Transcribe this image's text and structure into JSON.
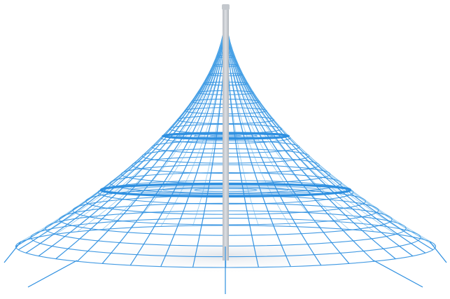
{
  "image": {
    "subject": "rope-net-pyramid-climber",
    "background_color": "#ffffff"
  },
  "colors": {
    "rope": "#2d8fe0",
    "rope_light": "#5aaeea",
    "mast": "#c9cdd2",
    "mast_shade": "#a9aeb5",
    "shadow": "#e6e9ee"
  }
}
